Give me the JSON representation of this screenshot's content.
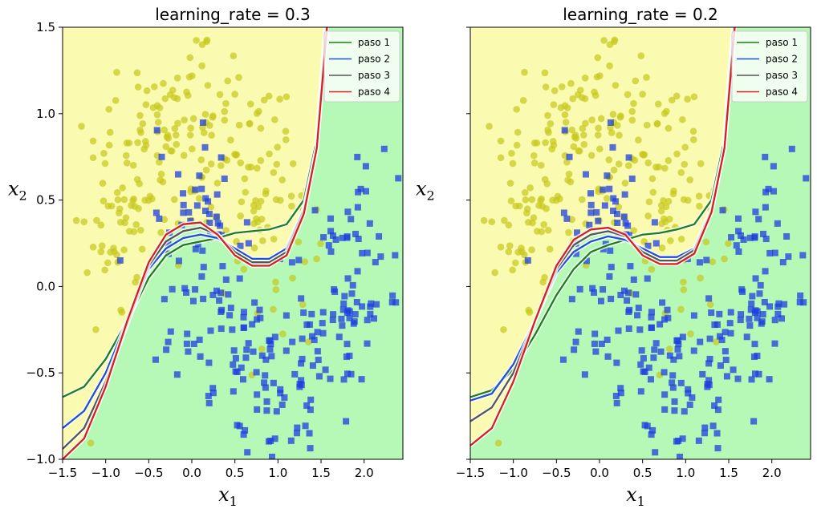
{
  "chart_data": [
    {
      "type": "scatter",
      "title": "learning_rate = 0.3",
      "xlabel_base": "x",
      "xlabel_sub": "1",
      "ylabel_base": "x",
      "ylabel_sub": "2",
      "xlim": [
        -1.5,
        2.45
      ],
      "ylim": [
        -1.0,
        1.5
      ],
      "xticks": [
        -1.5,
        -1.0,
        -0.5,
        0.0,
        0.5,
        1.0,
        1.5,
        2.0
      ],
      "xtick_labels": [
        "−1.5",
        "−1.0",
        "−0.5",
        "0.0",
        "0.5",
        "1.0",
        "1.5",
        "2.0"
      ],
      "yticks": [
        -1.0,
        -0.5,
        0.0,
        0.5,
        1.0,
        1.5
      ],
      "ytick_labels": [
        "−1.0",
        "−0.5",
        "0.0",
        "0.5",
        "1.0",
        "1.5"
      ],
      "legend_position": "top-right",
      "series": [
        {
          "name": "paso 1",
          "color": "#1a7f1a",
          "x": [
            -1.5,
            -1.25,
            -1.0,
            -0.75,
            -0.5,
            -0.3,
            -0.1,
            0.1,
            0.3,
            0.5,
            0.7,
            0.9,
            1.1,
            1.3,
            1.45,
            1.55
          ],
          "y": [
            -0.64,
            -0.58,
            -0.42,
            -0.2,
            0.05,
            0.18,
            0.24,
            0.26,
            0.28,
            0.31,
            0.32,
            0.33,
            0.36,
            0.5,
            0.85,
            1.5
          ]
        },
        {
          "name": "paso 2",
          "color": "#1f4fd8",
          "x": [
            -1.5,
            -1.25,
            -1.0,
            -0.75,
            -0.5,
            -0.3,
            -0.1,
            0.1,
            0.3,
            0.5,
            0.7,
            0.9,
            1.1,
            1.3,
            1.45,
            1.56
          ],
          "y": [
            -0.82,
            -0.72,
            -0.5,
            -0.2,
            0.1,
            0.22,
            0.28,
            0.3,
            0.28,
            0.22,
            0.16,
            0.16,
            0.22,
            0.45,
            0.8,
            1.5
          ]
        },
        {
          "name": "paso 3",
          "color": "#555555",
          "x": [
            -1.5,
            -1.25,
            -1.0,
            -0.75,
            -0.5,
            -0.3,
            -0.1,
            0.1,
            0.3,
            0.5,
            0.7,
            0.9,
            1.1,
            1.3,
            1.45,
            1.56
          ],
          "y": [
            -0.94,
            -0.82,
            -0.55,
            -0.22,
            0.12,
            0.26,
            0.32,
            0.34,
            0.3,
            0.2,
            0.14,
            0.14,
            0.2,
            0.44,
            0.8,
            1.5
          ]
        },
        {
          "name": "paso 4",
          "color": "#d62020",
          "x": [
            -1.5,
            -1.25,
            -1.0,
            -0.75,
            -0.5,
            -0.3,
            -0.1,
            0.1,
            0.3,
            0.5,
            0.7,
            0.9,
            1.1,
            1.3,
            1.45,
            1.57
          ],
          "y": [
            -1.0,
            -0.88,
            -0.58,
            -0.2,
            0.14,
            0.3,
            0.36,
            0.37,
            0.3,
            0.18,
            0.12,
            0.12,
            0.18,
            0.42,
            0.8,
            1.5
          ]
        }
      ]
    },
    {
      "type": "scatter",
      "title": "learning_rate = 0.2",
      "xlabel_base": "x",
      "xlabel_sub": "1",
      "ylabel_base": "x",
      "ylabel_sub": "2",
      "xlim": [
        -1.5,
        2.45
      ],
      "ylim": [
        -1.0,
        1.5
      ],
      "xticks": [
        -1.5,
        -1.0,
        -0.5,
        0.0,
        0.5,
        1.0,
        1.5,
        2.0
      ],
      "xtick_labels": [
        "−1.5",
        "−1.0",
        "−0.5",
        "0.0",
        "0.5",
        "1.0",
        "1.5",
        "2.0"
      ],
      "yticks": [
        -1.0,
        -0.5,
        0.0,
        0.5,
        1.0,
        1.5
      ],
      "ytick_labels": [],
      "legend_position": "top-right",
      "series": [
        {
          "name": "paso 1",
          "color": "#1a7f1a",
          "x": [
            -1.5,
            -1.25,
            -1.0,
            -0.75,
            -0.5,
            -0.3,
            -0.1,
            0.1,
            0.3,
            0.5,
            0.7,
            0.9,
            1.1,
            1.3,
            1.45,
            1.55
          ],
          "y": [
            -0.64,
            -0.6,
            -0.48,
            -0.28,
            -0.05,
            0.1,
            0.2,
            0.24,
            0.27,
            0.3,
            0.31,
            0.33,
            0.36,
            0.5,
            0.85,
            1.5
          ]
        },
        {
          "name": "paso 2",
          "color": "#1f4fd8",
          "x": [
            -1.5,
            -1.25,
            -1.0,
            -0.75,
            -0.5,
            -0.3,
            -0.1,
            0.1,
            0.3,
            0.5,
            0.7,
            0.9,
            1.1,
            1.3,
            1.45,
            1.56
          ],
          "y": [
            -0.66,
            -0.62,
            -0.45,
            -0.2,
            0.08,
            0.2,
            0.26,
            0.29,
            0.27,
            0.22,
            0.17,
            0.17,
            0.22,
            0.45,
            0.8,
            1.5
          ]
        },
        {
          "name": "paso 3",
          "color": "#555555",
          "x": [
            -1.5,
            -1.25,
            -1.0,
            -0.75,
            -0.5,
            -0.3,
            -0.1,
            0.1,
            0.3,
            0.5,
            0.7,
            0.9,
            1.1,
            1.3,
            1.45,
            1.56
          ],
          "y": [
            -0.78,
            -0.7,
            -0.5,
            -0.2,
            0.1,
            0.24,
            0.3,
            0.32,
            0.29,
            0.2,
            0.15,
            0.15,
            0.21,
            0.44,
            0.8,
            1.5
          ]
        },
        {
          "name": "paso 4",
          "color": "#d62020",
          "x": [
            -1.5,
            -1.25,
            -1.0,
            -0.75,
            -0.5,
            -0.3,
            -0.1,
            0.1,
            0.3,
            0.5,
            0.7,
            0.9,
            1.1,
            1.3,
            1.45,
            1.57
          ],
          "y": [
            -0.92,
            -0.82,
            -0.55,
            -0.2,
            0.12,
            0.27,
            0.33,
            0.34,
            0.3,
            0.18,
            0.13,
            0.13,
            0.19,
            0.43,
            0.8,
            1.5
          ]
        }
      ]
    }
  ],
  "style": {
    "class0_region_color": "#fafab0",
    "class1_region_color": "#b6f8b6",
    "class0_marker_color": "#c6c81a",
    "class1_marker_color": "#1d3fe0",
    "class0_marker": "circle",
    "class1_marker": "square"
  }
}
